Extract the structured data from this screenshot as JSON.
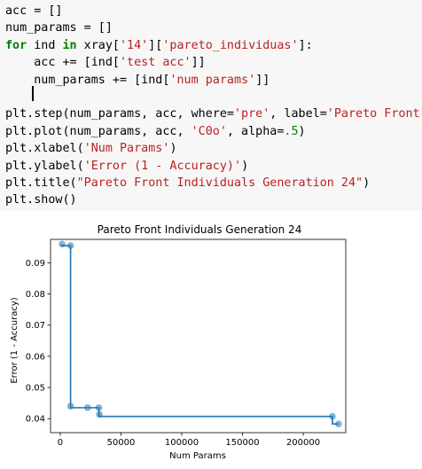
{
  "code_cell": {
    "lines": [
      [
        {
          "t": "acc = []",
          "c": ""
        }
      ],
      [
        {
          "t": "num_params = []",
          "c": ""
        }
      ],
      [
        {
          "t": "for",
          "c": "kw"
        },
        {
          "t": " ind ",
          "c": ""
        },
        {
          "t": "in",
          "c": "kw"
        },
        {
          "t": " xray[",
          "c": ""
        },
        {
          "t": "'14'",
          "c": "str"
        },
        {
          "t": "][",
          "c": ""
        },
        {
          "t": "'pareto_individuas'",
          "c": "str"
        },
        {
          "t": "]:",
          "c": ""
        }
      ],
      [
        {
          "t": "    acc += [ind[",
          "c": ""
        },
        {
          "t": "'test acc'",
          "c": "str"
        },
        {
          "t": "]]",
          "c": ""
        }
      ],
      [
        {
          "t": "    num_params += [ind[",
          "c": ""
        },
        {
          "t": "'num params'",
          "c": "str"
        },
        {
          "t": "]]",
          "c": ""
        }
      ],
      [
        {
          "t": " ",
          "c": ""
        }
      ],
      [
        {
          "t": "plt.step(num_params, acc, where=",
          "c": ""
        },
        {
          "t": "'pre'",
          "c": "str"
        },
        {
          "t": ", label=",
          "c": ""
        },
        {
          "t": "'Pareto Front'",
          "c": "str"
        },
        {
          "t": ")",
          "c": ""
        }
      ],
      [
        {
          "t": "plt.plot(num_params, acc, ",
          "c": ""
        },
        {
          "t": "'C0o'",
          "c": "str"
        },
        {
          "t": ", alpha=",
          "c": ""
        },
        {
          "t": ".5",
          "c": "num"
        },
        {
          "t": ")",
          "c": ""
        }
      ],
      [
        {
          "t": "plt.xlabel(",
          "c": ""
        },
        {
          "t": "'Num Params'",
          "c": "str"
        },
        {
          "t": ")",
          "c": ""
        }
      ],
      [
        {
          "t": "plt.ylabel(",
          "c": ""
        },
        {
          "t": "'Error (1 - Accuracy)'",
          "c": "str"
        },
        {
          "t": ")",
          "c": ""
        }
      ],
      [
        {
          "t": "plt.title(",
          "c": ""
        },
        {
          "t": "\"Pareto Front Individuals Generation 24\"",
          "c": "str"
        },
        {
          "t": ")",
          "c": ""
        }
      ],
      [
        {
          "t": "plt.show()",
          "c": ""
        }
      ]
    ]
  },
  "colors": {
    "series": "#1f77b4"
  },
  "chart_data": {
    "type": "line",
    "title": "Pareto Front Individuals Generation 24",
    "xlabel": "Num Params",
    "ylabel": "Error (1 - Accuracy)",
    "xlim": [
      -8000,
      235000
    ],
    "ylim": [
      0.0355,
      0.0975
    ],
    "xticks": [
      0,
      50000,
      100000,
      150000,
      200000
    ],
    "xtick_labels": [
      "0",
      "50000",
      "100000",
      "150000",
      "200000"
    ],
    "yticks": [
      0.04,
      0.05,
      0.06,
      0.07,
      0.08,
      0.09
    ],
    "ytick_labels": [
      "0.04",
      "0.05",
      "0.06",
      "0.07",
      "0.08",
      "0.09"
    ],
    "grid": false,
    "series": [
      {
        "step": "pre",
        "x": [
          1500,
          8500,
          8500,
          22500,
          31800,
          32200,
          224000,
          229000
        ],
        "y": [
          0.096,
          0.0955,
          0.044,
          0.0435,
          0.0435,
          0.0413,
          0.0407,
          0.0383
        ]
      }
    ]
  }
}
